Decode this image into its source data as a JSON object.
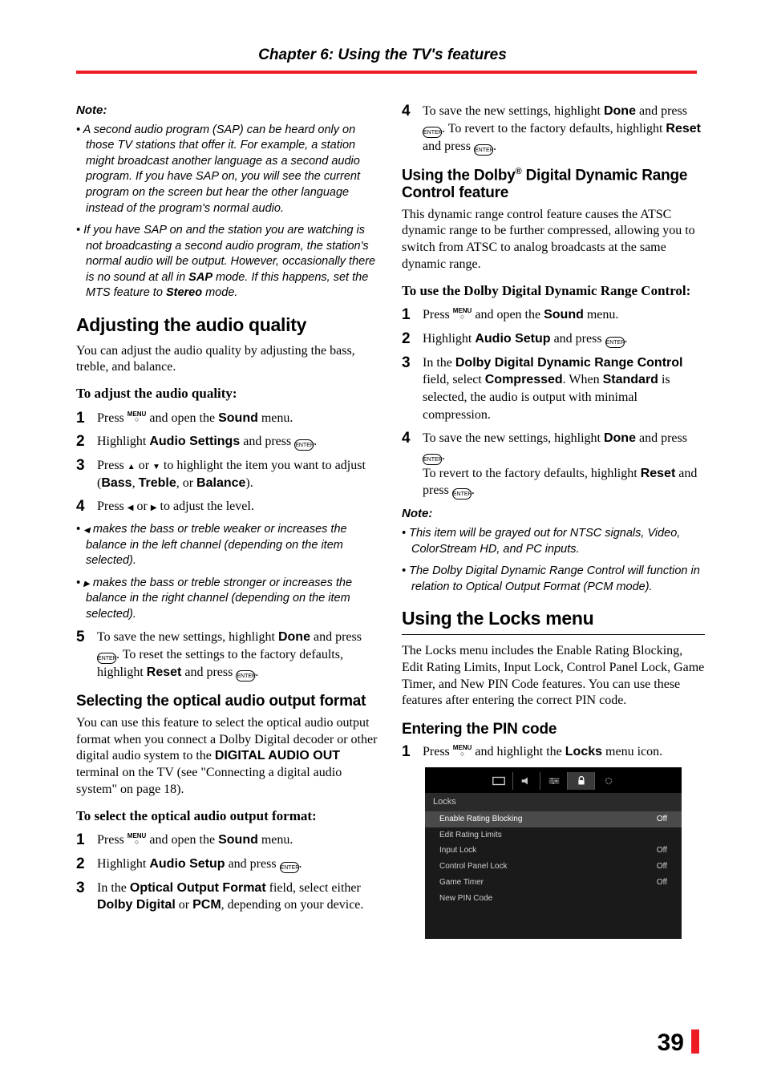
{
  "chapter_title": "Chapter 6: Using the TV's features",
  "left": {
    "note_hd": "Note:",
    "note1": "A second audio program (SAP) can be heard only on those TV stations that offer it. For example, a station might broadcast another language as a second audio program. If you have SAP on, you will see the current program on the screen but hear the other language instead of the program's normal audio.",
    "note2_a": "If you have SAP on and the station you are watching is not broadcasting a second audio program, the station's normal audio will be output. However, occasionally there is no sound at all in ",
    "note2_b": "SAP",
    "note2_c": " mode. If this happens, set the MTS feature to ",
    "note2_d": "Stereo",
    "note2_e": " mode.",
    "h_adjust": "Adjusting the audio quality",
    "body1": "You can adjust the audio quality by adjusting the bass, treble, and balance.",
    "sub1": "To adjust the audio quality:",
    "s1a": "Press ",
    "s1b": " and open the ",
    "s1c": "Sound",
    "s1d": " menu.",
    "s2a": "Highlight ",
    "s2b": "Audio Settings",
    "s2c": " and press ",
    "s3a": "Press ",
    "s3b": " or ",
    "s3c": " to highlight the item you want to adjust (",
    "s3d": "Bass",
    "s3e": ", ",
    "s3f": "Treble",
    "s3g": ", or ",
    "s3h": "Balance",
    "s3i": ").",
    "s4a": "Press ",
    "s4b": " or ",
    "s4c": " to adjust the level.",
    "bul1": " makes the bass or treble weaker or increases the balance in the left channel (depending on the item selected).",
    "bul2": " makes the bass or treble stronger or increases the balance in the right channel (depending on the item selected).",
    "s5a": "To save the new settings, highlight ",
    "s5b": "Done",
    "s5c": " and press ",
    "s5d": ". To reset the settings to the factory defaults, highlight ",
    "s5e": "Reset",
    "s5f": " and press ",
    "h_opt": "Selecting the optical audio output format",
    "body2a": "You can use this feature to select the optical audio output format when you connect a Dolby Digital decoder or other digital audio system to the ",
    "body2b": "DIGITAL AUDIO OUT",
    "body2c": " terminal on the TV (see \"Connecting a digital audio system\" on page 18).",
    "sub2": "To select the optical audio output format:",
    "o1a": "Press ",
    "o1b": " and open the ",
    "o1c": "Sound",
    "o1d": " menu.",
    "o2a": "Highlight ",
    "o2b": "Audio Setup",
    "o2c": " and press ",
    "o3a": "In the ",
    "o3b": "Optical Output Format",
    "o3c": " field, select either ",
    "o3d": "Dolby Digital",
    "o3e": " or ",
    "o3f": "PCM",
    "o3g": ", depending on your device."
  },
  "right": {
    "s4a": "To save the new settings, highlight ",
    "s4b": "Done",
    "s4c": " and press ",
    "s4d": ". To revert to the factory defaults, highlight ",
    "s4e": "Reset",
    "s4f": " and press ",
    "h_dolby_a": "Using the Dolby",
    "h_dolby_sup": "®",
    "h_dolby_b": " Digital Dynamic Range Control feature",
    "body1": "This dynamic range control feature causes the ATSC dynamic range to be further compressed, allowing you to switch from ATSC to analog broadcasts at the same dynamic range.",
    "sub1": "To use the Dolby Digital Dynamic Range Control:",
    "d1a": "Press ",
    "d1b": " and open the ",
    "d1c": "Sound",
    "d1d": " menu.",
    "d2a": "Highlight ",
    "d2b": "Audio Setup",
    "d2c": " and press ",
    "d3a": "In the ",
    "d3b": "Dolby Digital Dynamic Range Control",
    "d3c": " field, select ",
    "d3d": "Compressed",
    "d3e": ". When ",
    "d3f": "Standard",
    "d3g": " is selected, the audio is output with minimal compression.",
    "d4a": "To save the new settings, highlight ",
    "d4b": "Done",
    "d4c": " and press ",
    "d4d": "To revert to the factory defaults, highlight ",
    "d4e": "Reset",
    "d4f": " and press ",
    "note_hd": "Note:",
    "note1": "This item will be grayed out for NTSC signals, Video, ColorStream HD, and PC inputs.",
    "note2": "The Dolby Digital Dynamic Range Control will function in relation to Optical Output Format (PCM mode).",
    "h_locks": "Using the Locks menu",
    "body2": "The Locks menu includes the Enable Rating Blocking, Edit Rating Limits, Input Lock, Control Panel Lock, Game Timer, and New PIN Code features. You can use these features after entering the correct PIN code.",
    "h_pin": "Entering the PIN code",
    "p1a": "Press ",
    "p1b": " and highlight the ",
    "p1c": "Locks",
    "p1d": " menu icon.",
    "osd": {
      "title": "Locks",
      "rows": [
        {
          "l": "Enable Rating Blocking",
          "r": "Off",
          "hl": true
        },
        {
          "l": "Edit Rating Limits",
          "r": "",
          "hl": false
        },
        {
          "l": "Input Lock",
          "r": "Off",
          "hl": false
        },
        {
          "l": "Control Panel Lock",
          "r": "Off",
          "hl": false
        },
        {
          "l": "Game Timer",
          "r": "Off",
          "hl": false
        },
        {
          "l": "New PIN Code",
          "r": "",
          "hl": false
        }
      ]
    }
  },
  "page_number": "39",
  "buttons": {
    "menu": "MENU",
    "enter": "ENTER"
  },
  "colors": {
    "red": "#ed1c24",
    "osd_bg": "#1a1a1a",
    "osd_row_hl": "#4a4a4a"
  }
}
